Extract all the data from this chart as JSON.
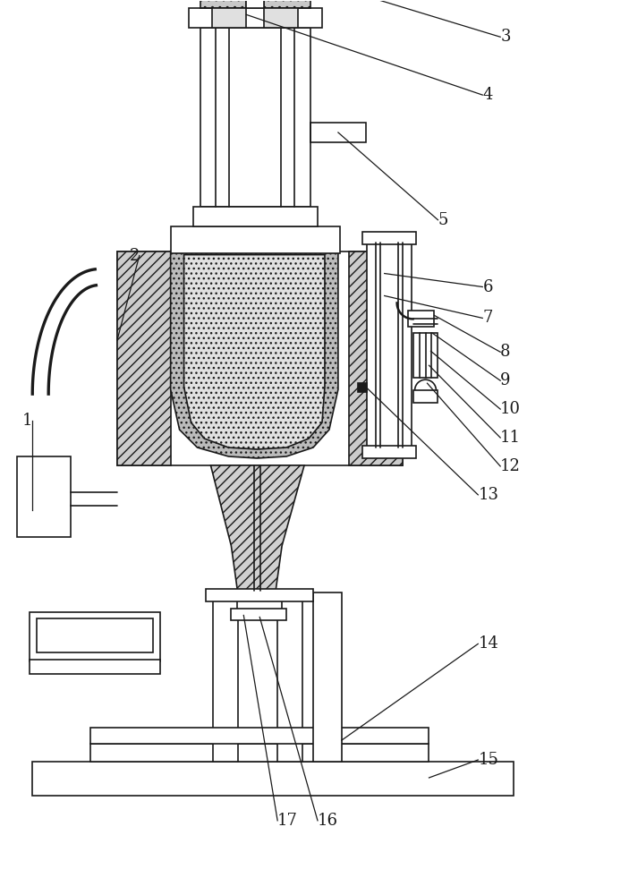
{
  "bg": "#ffffff",
  "lc": "#1a1a1a",
  "fig_w": 7.03,
  "fig_h": 10.0,
  "lw": 1.2
}
